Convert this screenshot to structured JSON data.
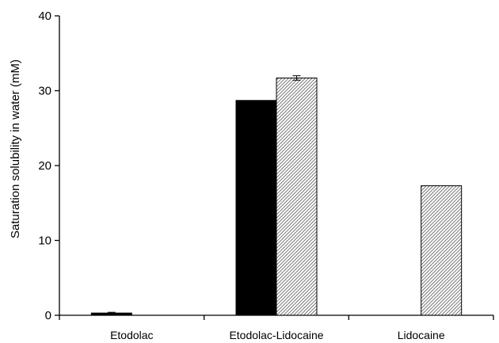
{
  "chart_data": {
    "type": "bar",
    "categories": [
      "Etodolac",
      "Etodolac-Lidocaine",
      "Lidocaine"
    ],
    "series": [
      {
        "values": [
          0.3,
          28.7,
          null
        ],
        "errors": [
          0.1,
          null,
          null
        ],
        "color": "#000000",
        "pattern": "solid"
      },
      {
        "values": [
          null,
          31.7,
          17.3
        ],
        "errors": [
          null,
          0.3,
          null
        ],
        "color": "#bdbdbd",
        "pattern": "hatched"
      }
    ],
    "title": "",
    "xlabel": "",
    "ylabel": "Saturation solubility in water (mM)",
    "ylim": [
      0,
      40
    ],
    "yticks": [
      "0",
      "10",
      "20",
      "30",
      "40"
    ],
    "grid": false,
    "legend": "none"
  }
}
